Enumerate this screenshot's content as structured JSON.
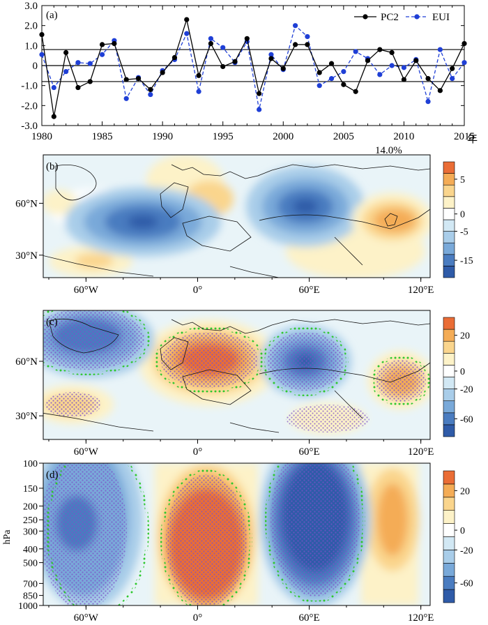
{
  "chart_data": [
    {
      "type": "line",
      "panel": "(a)",
      "x_unit": "年",
      "xlim": [
        1980,
        2015
      ],
      "ylim": [
        -3.0,
        3.0
      ],
      "yticks": [
        "3.0",
        "2.0",
        "1.0",
        "0",
        "-1.0",
        "-2.0",
        "-3.0"
      ],
      "xticks": [
        "1980",
        "1985",
        "1990",
        "1995",
        "2000",
        "2005",
        "2010",
        "2015"
      ],
      "reference_lines": [
        0.8,
        0,
        -0.8
      ],
      "legend_position": "top-right",
      "x": [
        1980,
        1981,
        1982,
        1983,
        1984,
        1985,
        1986,
        1987,
        1988,
        1989,
        1990,
        1991,
        1992,
        1993,
        1994,
        1995,
        1996,
        1997,
        1998,
        1999,
        2000,
        2001,
        2002,
        2003,
        2004,
        2005,
        2006,
        2007,
        2008,
        2009,
        2010,
        2011,
        2012,
        2013,
        2014,
        2015
      ],
      "series": [
        {
          "name": "PC2",
          "color": "#000000",
          "dash": "solid",
          "values": [
            1.55,
            -2.55,
            0.65,
            -1.1,
            -0.8,
            1.05,
            1.1,
            -0.7,
            -0.65,
            -1.2,
            -0.35,
            0.4,
            2.3,
            -0.5,
            1.1,
            -0.05,
            0.2,
            1.35,
            -1.4,
            0.35,
            -0.15,
            1.05,
            1.05,
            -0.35,
            0.1,
            -0.95,
            -1.3,
            0.25,
            0.8,
            0.65,
            -0.7,
            0.25,
            -0.65,
            -1.25,
            -0.15,
            1.1
          ]
        },
        {
          "name": "EUI",
          "color": "#1f3fd6",
          "dash": "dashed",
          "values": [
            0.55,
            -1.1,
            -0.3,
            0.15,
            0.1,
            0.55,
            1.25,
            -1.65,
            -0.6,
            -1.45,
            -0.25,
            0.3,
            1.6,
            -1.3,
            1.35,
            0.9,
            0.15,
            1.2,
            -2.2,
            0.55,
            -0.2,
            2.0,
            1.45,
            -1.0,
            -0.65,
            -0.3,
            0.7,
            0.35,
            -0.45,
            0.0,
            -0.1,
            0.3,
            -1.8,
            0.8,
            -0.65,
            0.15
          ]
        }
      ],
      "annotation": "14.0%"
    },
    {
      "type": "heatmap",
      "panel": "(b)",
      "xticks": [
        "60°W",
        "0°",
        "60°E",
        "120°E"
      ],
      "yticks": [
        "60°N",
        "30°N"
      ],
      "colorbar_ticks": [
        "5",
        "0",
        "-5",
        "-15"
      ],
      "colors": [
        "#2f5ba8",
        "#4a7cc0",
        "#79a9d9",
        "#a9cde9",
        "#d2e8f4",
        "#ffffff",
        "#fdf2c8",
        "#fad58d",
        "#f4ac56",
        "#ea6d36"
      ]
    },
    {
      "type": "heatmap",
      "panel": "(c)",
      "xticks": [
        "60°W",
        "0°",
        "60°E",
        "120°E"
      ],
      "yticks": [
        "60°N",
        "30°N"
      ],
      "colorbar_ticks": [
        "20",
        "0",
        "-20",
        "-60"
      ],
      "stipple_colors": [
        "#7b4fc8",
        "#2ec82e"
      ]
    },
    {
      "type": "heatmap",
      "panel": "(d)",
      "ylabel": "hPa",
      "xticks": [
        "60°W",
        "0°",
        "60°E",
        "120°E"
      ],
      "yticks": [
        "100",
        "150",
        "200",
        "250",
        "300",
        "400",
        "500",
        "700",
        "850",
        "1000"
      ],
      "colorbar_ticks": [
        "20",
        "0",
        "-20",
        "-60"
      ]
    }
  ],
  "legend": {
    "pc2_label": "PC2",
    "eui_label": "EUI"
  }
}
